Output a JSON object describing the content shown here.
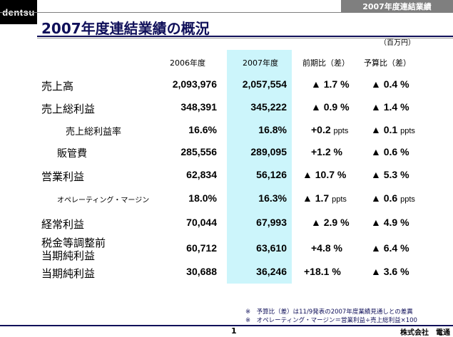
{
  "logo": "dentsu",
  "top_tag": "2007年度連結業績",
  "title": "2007年度連結業績の概況",
  "unit": "（百万円）",
  "headers": {
    "y2006": "2006年度",
    "y2007": "2007年度",
    "yoy": "前期比（差）",
    "budget": "予算比（差）"
  },
  "rows": [
    {
      "label": "売上高",
      "v2006": "2,093,976",
      "v2007": "2,057,554",
      "yoy": "▲ 1.7 %",
      "budget": "▲ 0.4 %"
    },
    {
      "label": "売上総利益",
      "v2006": "348,391",
      "v2007": "345,222",
      "yoy": "▲ 0.9 %",
      "budget": "▲ 1.4 %"
    },
    {
      "label": "売上総利益率",
      "v2006": "16.6%",
      "v2007": "16.8%",
      "yoy": "+0.2",
      "yoy_unit": "ppts",
      "budget": "▲ 0.1",
      "budget_unit": "ppts"
    },
    {
      "label": "販管費",
      "v2006": "285,556",
      "v2007": "289,095",
      "yoy": "+1.2 %",
      "budget": "▲ 0.6 %"
    },
    {
      "label": "営業利益",
      "v2006": "62,834",
      "v2007": "56,126",
      "yoy": "▲ 10.7 %",
      "budget": "▲ 5.3 %"
    },
    {
      "label": "オペレーティング・マージン",
      "v2006": "18.0%",
      "v2007": "16.3%",
      "yoy": "▲ 1.7",
      "yoy_unit": "ppts",
      "budget": "▲ 0.6",
      "budget_unit": "ppts"
    },
    {
      "label": "経常利益",
      "v2006": "70,044",
      "v2007": "67,993",
      "yoy": "▲ 2.9 %",
      "budget": "▲ 4.9 %"
    },
    {
      "label_line1": "税金等調整前",
      "label_line2": "当期純利益",
      "v2006": "60,712",
      "v2007": "63,610",
      "yoy": "+4.8 %",
      "budget": "▲ 6.4 %"
    },
    {
      "label": "当期純利益",
      "v2006": "30,688",
      "v2007": "36,246",
      "yoy": "+18.1 %",
      "budget": "▲ 3.6 %"
    }
  ],
  "footnotes": [
    "※　予算比（差）は11/9発表の2007年度業績見通しとの差異",
    "※　オペレーティング・マージン＝営業利益÷売上総利益×100"
  ],
  "page_number": "1",
  "company": "株式会社　電通",
  "colors": {
    "navy": "#10105a",
    "highlight": "#ccf5fb",
    "gray": "#7f7f7f"
  }
}
